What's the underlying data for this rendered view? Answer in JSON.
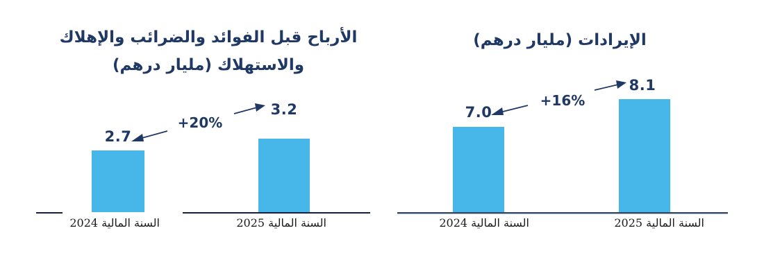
{
  "colors": {
    "background": "#FFFFFF",
    "bar": "#47B6E8",
    "title": "#1F3864",
    "number": "#1F3864",
    "arrow": "#1F3864",
    "axis-left": "#14203E",
    "axis-right": "#33465F",
    "axis-right-under": "#AFC0D6",
    "tick": "#1B1B1B"
  },
  "chart_data": [
    {
      "type": "bar",
      "title": "الأرباح قبل الفوائد والضرائب والإهلاك والاستهلاك (مليار درهم)",
      "title_lines": [
        "الأرباح قبل الفوائد والضرائب والإهلاك",
        "والاستهلاك (مليار درهم)"
      ],
      "unit": "مليار درهم",
      "categories": [
        "السنة المالية 2024",
        "السنة المالية 2025"
      ],
      "values": [
        2.7,
        3.2
      ],
      "value_labels": [
        "2.7",
        "3.2"
      ],
      "growth_annotation": "+20%",
      "ylim": [
        0,
        3.5
      ],
      "gridlines": false,
      "legend": false,
      "value_labels_position": "above bars",
      "annotation_style": "two navy arrows from growth label toward each value"
    },
    {
      "type": "bar",
      "title": "الإيرادات (مليار درهم)",
      "title_lines": [
        "الإيرادات (مليار درهم)"
      ],
      "unit": "مليار درهم",
      "categories": [
        "السنة المالية 2024",
        "السنة المالية 2025"
      ],
      "values": [
        7.0,
        8.1
      ],
      "value_labels": [
        "7.0",
        "8.1"
      ],
      "growth_annotation": "+16%",
      "ylim": [
        0,
        8.5
      ],
      "gridlines": false,
      "legend": false,
      "value_labels_position": "above bars",
      "annotation_style": "two navy arrows from growth label toward each value"
    }
  ]
}
